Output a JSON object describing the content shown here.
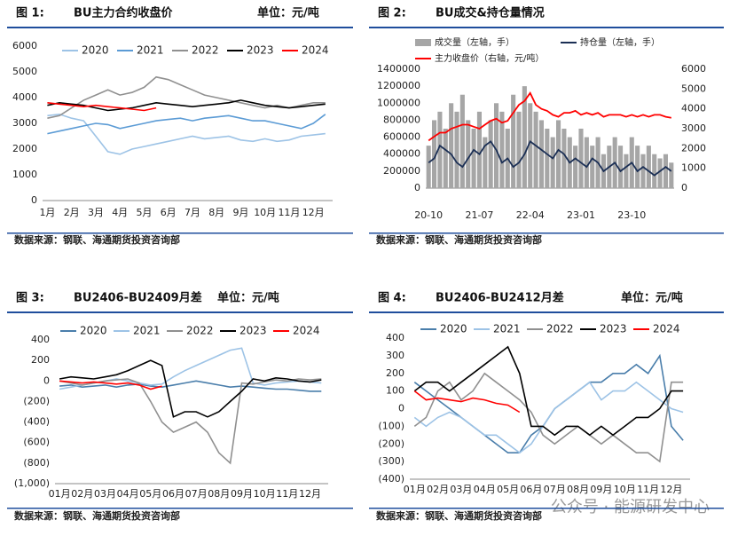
{
  "chart_data": [
    {
      "type": "line",
      "fig_label": "图 1:",
      "title": "BU主力合约收盘价",
      "unit": "单位：元/吨",
      "source": "数据来源：钢联、海通期货投资咨询部",
      "x": [
        1,
        1.5,
        2,
        2.5,
        3,
        3.5,
        4,
        4.5,
        5,
        5.5,
        6,
        6.5,
        7,
        7.5,
        8,
        8.5,
        9,
        9.5,
        10,
        10.5,
        11,
        11.5,
        12,
        12.5
      ],
      "xlim": [
        0.8,
        12.8
      ],
      "xticks": [
        {
          "value": 1,
          "label": "1月"
        },
        {
          "value": 2,
          "label": "2月"
        },
        {
          "value": 3,
          "label": "3月"
        },
        {
          "value": 4,
          "label": "4月"
        },
        {
          "value": 5,
          "label": "5月"
        },
        {
          "value": 6,
          "label": "6月"
        },
        {
          "value": 7,
          "label": "7月"
        },
        {
          "value": 8,
          "label": "8月"
        },
        {
          "value": 9,
          "label": "9月"
        },
        {
          "value": 10,
          "label": "10月"
        },
        {
          "value": 11,
          "label": "11月"
        },
        {
          "value": 12,
          "label": "12月"
        }
      ],
      "ylim": [
        0,
        6000
      ],
      "yticks": [
        0,
        1000,
        2000,
        3000,
        4000,
        5000,
        6000
      ],
      "series": [
        {
          "name": "2020",
          "color": "#9dc3e6",
          "values": [
            3300,
            3350,
            3200,
            3100,
            2500,
            1900,
            1800,
            2000,
            2100,
            2200,
            2300,
            2400,
            2500,
            2400,
            2450,
            2500,
            2350,
            2300,
            2400,
            2300,
            2350,
            2500,
            2550,
            2600
          ]
        },
        {
          "name": "2021",
          "color": "#5b9bd5",
          "values": [
            2600,
            2700,
            2800,
            2900,
            3000,
            2950,
            2800,
            2900,
            3000,
            3100,
            3150,
            3200,
            3100,
            3200,
            3250,
            3300,
            3200,
            3100,
            3100,
            3000,
            2900,
            2800,
            3000,
            3350
          ]
        },
        {
          "name": "2022",
          "color": "#909090",
          "values": [
            3200,
            3300,
            3600,
            3900,
            4100,
            4300,
            4100,
            4200,
            4400,
            4800,
            4700,
            4500,
            4300,
            4100,
            4000,
            3900,
            3800,
            3700,
            3600,
            3700,
            3600,
            3700,
            3800,
            3800
          ]
        },
        {
          "name": "2023",
          "color": "#000000",
          "values": [
            3700,
            3800,
            3750,
            3700,
            3600,
            3500,
            3550,
            3600,
            3700,
            3800,
            3750,
            3700,
            3650,
            3700,
            3750,
            3800,
            3900,
            3800,
            3700,
            3650,
            3600,
            3650,
            3700,
            3750
          ]
        },
        {
          "name": "2024",
          "color": "#ff0000",
          "values": [
            3800,
            3750,
            3700,
            3650,
            3700,
            3650,
            3600,
            3550,
            3500,
            3600,
            null,
            null,
            null,
            null,
            null,
            null,
            null,
            null,
            null,
            null,
            null,
            null,
            null,
            null
          ]
        }
      ]
    },
    {
      "type": "combo",
      "fig_label": "图 2:",
      "title": "BU成交&持仓量情况",
      "source": "数据来源：钢联、海通期货投资咨询部",
      "categories": [
        "20-10",
        null,
        null,
        null,
        null,
        null,
        null,
        null,
        null,
        "21-07",
        null,
        null,
        null,
        null,
        null,
        null,
        null,
        null,
        "22-04",
        null,
        null,
        null,
        null,
        null,
        null,
        null,
        null,
        "23-01",
        null,
        null,
        null,
        null,
        null,
        null,
        null,
        null,
        "23-10",
        null,
        null,
        null,
        null,
        null,
        null,
        null
      ],
      "ylim": [
        0,
        1400000
      ],
      "yticks": [
        0,
        200000,
        400000,
        600000,
        800000,
        1000000,
        1200000,
        1400000
      ],
      "y2lim": [
        0,
        6000
      ],
      "y2ticks": [
        0,
        1000,
        2000,
        3000,
        4000,
        5000,
        6000
      ],
      "series": [
        {
          "name": "成交量（左轴，手）",
          "kind": "bar",
          "color": "#a6a6a6",
          "values": [
            500000,
            800000,
            900000,
            700000,
            1000000,
            900000,
            1100000,
            800000,
            700000,
            900000,
            600000,
            800000,
            1000000,
            900000,
            700000,
            1100000,
            900000,
            1200000,
            1000000,
            900000,
            800000,
            700000,
            600000,
            800000,
            700000,
            600000,
            500000,
            700000,
            600000,
            500000,
            600000,
            400000,
            500000,
            600000,
            500000,
            400000,
            600000,
            500000,
            400000,
            500000,
            400000,
            350000,
            400000,
            300000
          ]
        },
        {
          "name": "持仓量（左轴，手）",
          "kind": "line",
          "color": "#1b2f55",
          "values": [
            300000,
            350000,
            500000,
            450000,
            400000,
            300000,
            250000,
            350000,
            450000,
            400000,
            500000,
            550000,
            450000,
            300000,
            350000,
            250000,
            300000,
            400000,
            550000,
            500000,
            450000,
            400000,
            350000,
            450000,
            400000,
            300000,
            350000,
            300000,
            250000,
            350000,
            300000,
            200000,
            250000,
            300000,
            200000,
            250000,
            300000,
            200000,
            250000,
            200000,
            150000,
            200000,
            250000,
            200000
          ]
        },
        {
          "name": "主力收盘价（右轴，元/吨）",
          "kind": "line",
          "axis": "y2",
          "color": "#ff0000",
          "values": [
            2400,
            2600,
            2800,
            2800,
            3000,
            3100,
            3200,
            3200,
            3100,
            3000,
            3200,
            3400,
            3500,
            3300,
            3400,
            3800,
            4200,
            4400,
            4800,
            4200,
            4000,
            3900,
            3700,
            3600,
            3800,
            3800,
            3900,
            3700,
            3800,
            3700,
            3800,
            3600,
            3700,
            3700,
            3700,
            3600,
            3700,
            3600,
            3700,
            3600,
            3700,
            3700,
            3600,
            3550
          ]
        }
      ]
    },
    {
      "type": "line",
      "fig_label": "图 3:",
      "title": "BU2406-BU2409月差",
      "unit": "单位：元/吨",
      "source": "数据来源：钢联、海通期货投资咨询部",
      "x": [
        1,
        1.5,
        2,
        2.5,
        3,
        3.5,
        4,
        4.5,
        5,
        5.5,
        6,
        6.5,
        7,
        7.5,
        8,
        8.5,
        9,
        9.5,
        10,
        10.5,
        11,
        11.5,
        12,
        12.5
      ],
      "xlim": [
        0.8,
        12.8
      ],
      "xticks": [
        {
          "value": 1,
          "label": "01月"
        },
        {
          "value": 2,
          "label": "02月"
        },
        {
          "value": 3,
          "label": "03月"
        },
        {
          "value": 4,
          "label": "04月"
        },
        {
          "value": 5,
          "label": "05月"
        },
        {
          "value": 6,
          "label": "06月"
        },
        {
          "value": 7,
          "label": "07月"
        },
        {
          "value": 8,
          "label": "08月"
        },
        {
          "value": 9,
          "label": "09月"
        },
        {
          "value": 10,
          "label": "10月"
        },
        {
          "value": 11,
          "label": "11月"
        },
        {
          "value": 12,
          "label": "12月"
        }
      ],
      "ylim": [
        -1000,
        400
      ],
      "yticks": [
        {
          "value": -1000,
          "label": "(1,000)"
        },
        {
          "value": -800,
          "label": "(800)"
        },
        {
          "value": -600,
          "label": "(600)"
        },
        {
          "value": -400,
          "label": "(400)"
        },
        {
          "value": -200,
          "label": "(200)"
        },
        0,
        200,
        400
      ],
      "series": [
        {
          "name": "2020",
          "color": "#4a7eab",
          "values": [
            -50,
            -40,
            -60,
            -50,
            -40,
            -60,
            -40,
            -30,
            -50,
            -60,
            -40,
            -20,
            0,
            -20,
            -40,
            -60,
            -50,
            -60,
            -70,
            -80,
            -80,
            -90,
            -100,
            -100
          ]
        },
        {
          "name": "2021",
          "color": "#9dc3e6",
          "values": [
            -80,
            -60,
            -40,
            -20,
            0,
            20,
            0,
            -20,
            -40,
            -30,
            40,
            100,
            150,
            200,
            250,
            300,
            320,
            -20,
            -40,
            -20,
            -10,
            0,
            -10,
            -20
          ]
        },
        {
          "name": "2022",
          "color": "#909090",
          "values": [
            0,
            -20,
            -40,
            -20,
            0,
            10,
            20,
            -20,
            -200,
            -400,
            -500,
            -450,
            -400,
            -500,
            -700,
            -800,
            -20,
            -30,
            -10,
            10,
            0,
            20,
            10,
            20
          ]
        },
        {
          "name": "2023",
          "color": "#000000",
          "values": [
            20,
            40,
            30,
            20,
            40,
            60,
            100,
            150,
            200,
            150,
            -350,
            -300,
            -300,
            -350,
            -300,
            -200,
            -100,
            20,
            0,
            30,
            20,
            0,
            -10,
            10
          ]
        },
        {
          "name": "2024",
          "color": "#ff0000",
          "values": [
            0,
            -10,
            -20,
            -10,
            -20,
            -30,
            -20,
            -40,
            -80,
            -50,
            null,
            null,
            null,
            null,
            null,
            null,
            null,
            null,
            null,
            null,
            null,
            null,
            null,
            null
          ]
        }
      ]
    },
    {
      "type": "line",
      "fig_label": "图 4:",
      "title": "BU2406-BU2412月差",
      "unit": "单位：元/吨",
      "source": "数据来源：钢联、海通期货投资咨询部",
      "x": [
        1,
        1.5,
        2,
        2.5,
        3,
        3.5,
        4,
        4.5,
        5,
        5.5,
        6,
        6.5,
        7,
        7.5,
        8,
        8.5,
        9,
        9.5,
        10,
        10.5,
        11,
        11.5,
        12,
        12.5
      ],
      "xlim": [
        0.8,
        12.8
      ],
      "xticks": [
        {
          "value": 1,
          "label": "01月"
        },
        {
          "value": 2,
          "label": "02月"
        },
        {
          "value": 3,
          "label": "03月"
        },
        {
          "value": 4,
          "label": "04月"
        },
        {
          "value": 5,
          "label": "05月"
        },
        {
          "value": 6,
          "label": "06月"
        },
        {
          "value": 7,
          "label": "07月"
        },
        {
          "value": 8,
          "label": "08月"
        },
        {
          "value": 9,
          "label": "09月"
        },
        {
          "value": 10,
          "label": "10月"
        },
        {
          "value": 11,
          "label": "11月"
        },
        {
          "value": 12,
          "label": "12月"
        }
      ],
      "ylim": [
        -400,
        400
      ],
      "yticks": [
        {
          "value": -400,
          "label": "(400)"
        },
        {
          "value": -300,
          "label": "(300)"
        },
        {
          "value": -200,
          "label": "(200)"
        },
        {
          "value": -100,
          "label": "(100)"
        },
        0,
        100,
        200,
        300,
        400
      ],
      "series": [
        {
          "name": "2020",
          "color": "#4a7eab",
          "values": [
            150,
            100,
            50,
            0,
            -50,
            -100,
            -150,
            -200,
            -250,
            -250,
            -150,
            -100,
            0,
            50,
            100,
            150,
            150,
            200,
            200,
            250,
            200,
            300,
            -100,
            -180
          ]
        },
        {
          "name": "2021",
          "color": "#9dc3e6",
          "values": [
            -50,
            -100,
            -50,
            -20,
            -50,
            -100,
            -150,
            -150,
            -200,
            -250,
            -200,
            -100,
            0,
            50,
            100,
            150,
            50,
            100,
            100,
            150,
            100,
            50,
            0,
            -20
          ]
        },
        {
          "name": "2022",
          "color": "#909090",
          "values": [
            -100,
            -50,
            100,
            150,
            50,
            100,
            200,
            150,
            100,
            50,
            -20,
            -150,
            -200,
            -150,
            -100,
            -150,
            -200,
            -150,
            -200,
            -250,
            -250,
            -300,
            150,
            150
          ]
        },
        {
          "name": "2023",
          "color": "#000000",
          "values": [
            100,
            150,
            150,
            100,
            150,
            200,
            250,
            300,
            350,
            200,
            -100,
            -100,
            -150,
            -100,
            -100,
            -150,
            -100,
            -150,
            -100,
            -50,
            -50,
            0,
            100,
            100
          ]
        },
        {
          "name": "2024",
          "color": "#ff0000",
          "values": [
            100,
            50,
            60,
            50,
            40,
            60,
            50,
            30,
            20,
            -20,
            null,
            null,
            null,
            null,
            null,
            null,
            null,
            null,
            null,
            null,
            null,
            null,
            null,
            null
          ]
        }
      ]
    }
  ],
  "watermark": "公众号 · 能源研发中心"
}
